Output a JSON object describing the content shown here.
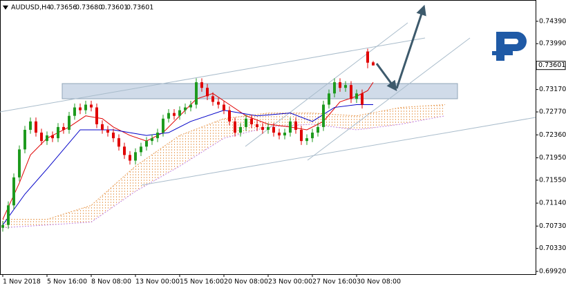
{
  "chart_data": {
    "type": "candlestick",
    "symbol": "AUDUSD,H4",
    "header_prices": [
      {
        "value": 0.73656,
        "label": "0.73656"
      },
      {
        "value": 0.7368,
        "label": "0.73680"
      },
      {
        "value": 0.73601,
        "label": "0.73601"
      },
      {
        "value": 0.73601,
        "label": "0.73601"
      }
    ],
    "last_price": {
      "value": 0.73601,
      "label": "0.73601"
    },
    "open": [
      0.707,
      0.7075,
      0.711,
      0.716,
      0.721,
      0.7245,
      0.726,
      0.724,
      0.7225,
      0.7235,
      0.723,
      0.725,
      0.7245,
      0.727,
      0.7285,
      0.728,
      0.729,
      0.7285,
      0.7255,
      0.7245,
      0.724,
      0.723,
      0.7215,
      0.72,
      0.719,
      0.7205,
      0.7215,
      0.7225,
      0.723,
      0.724,
      0.7265,
      0.7275,
      0.727,
      0.728,
      0.7285,
      0.729,
      0.733,
      0.732,
      0.7305,
      0.7295,
      0.729,
      0.728,
      0.726,
      0.724,
      0.725,
      0.7265,
      0.7255,
      0.725,
      0.7245,
      0.725,
      0.724,
      0.7235,
      0.724,
      0.726,
      0.7245,
      0.7225,
      0.723,
      0.724,
      0.725,
      0.729,
      0.731,
      0.733,
      0.732,
      0.7325,
      0.73,
      0.731,
      0.7385,
      0.73656
    ],
    "high": [
      0.7082,
      0.7117,
      0.7167,
      0.7217,
      0.7252,
      0.7267,
      0.7267,
      0.7247,
      0.7242,
      0.7242,
      0.7257,
      0.7257,
      0.7277,
      0.7292,
      0.7292,
      0.7297,
      0.7297,
      0.7292,
      0.7262,
      0.7252,
      0.7247,
      0.7237,
      0.7222,
      0.7207,
      0.7212,
      0.7222,
      0.7232,
      0.7237,
      0.7247,
      0.7272,
      0.7282,
      0.7282,
      0.7287,
      0.7292,
      0.7297,
      0.7337,
      0.7337,
      0.7327,
      0.7312,
      0.7302,
      0.7297,
      0.7287,
      0.7267,
      0.7257,
      0.7272,
      0.7272,
      0.7262,
      0.7257,
      0.7257,
      0.7257,
      0.7247,
      0.7247,
      0.7267,
      0.7267,
      0.7252,
      0.7237,
      0.7247,
      0.7257,
      0.7297,
      0.7317,
      0.7337,
      0.7337,
      0.7332,
      0.7332,
      0.7317,
      0.7317,
      0.739,
      0.7368
    ],
    "low": [
      0.7063,
      0.7068,
      0.7103,
      0.7153,
      0.7203,
      0.7238,
      0.7233,
      0.7218,
      0.7218,
      0.7223,
      0.7223,
      0.7238,
      0.7238,
      0.7263,
      0.7273,
      0.7273,
      0.7278,
      0.7248,
      0.7238,
      0.7233,
      0.7223,
      0.7208,
      0.7193,
      0.7183,
      0.7183,
      0.7198,
      0.7208,
      0.7218,
      0.7223,
      0.7233,
      0.7258,
      0.7263,
      0.7263,
      0.7273,
      0.7278,
      0.7283,
      0.7313,
      0.7298,
      0.7288,
      0.7283,
      0.7273,
      0.7253,
      0.7233,
      0.7233,
      0.7243,
      0.7248,
      0.7243,
      0.7238,
      0.7238,
      0.7233,
      0.7228,
      0.7228,
      0.7233,
      0.7238,
      0.7218,
      0.7218,
      0.7223,
      0.7233,
      0.7243,
      0.7283,
      0.7303,
      0.7313,
      0.7313,
      0.7293,
      0.7293,
      0.7283,
      0.7355,
      0.73601
    ],
    "close": [
      0.7075,
      0.711,
      0.716,
      0.721,
      0.7245,
      0.726,
      0.724,
      0.7225,
      0.7235,
      0.723,
      0.725,
      0.7245,
      0.727,
      0.7285,
      0.728,
      0.729,
      0.7285,
      0.7255,
      0.7245,
      0.724,
      0.723,
      0.7215,
      0.72,
      0.719,
      0.7205,
      0.7215,
      0.7225,
      0.723,
      0.724,
      0.7265,
      0.7275,
      0.727,
      0.728,
      0.7285,
      0.729,
      0.733,
      0.732,
      0.7305,
      0.7295,
      0.729,
      0.728,
      0.726,
      0.724,
      0.725,
      0.7265,
      0.7255,
      0.725,
      0.7245,
      0.725,
      0.724,
      0.7235,
      0.724,
      0.726,
      0.7245,
      0.7225,
      0.723,
      0.724,
      0.725,
      0.729,
      0.731,
      0.733,
      0.732,
      0.7325,
      0.73,
      0.731,
      0.729,
      0.7365,
      0.73601
    ],
    "up_color": "#1e9a1e",
    "down_color": "#e00000",
    "lines": [
      {
        "color": "#e00000",
        "x": [
          0,
          3,
          5,
          8,
          12,
          15,
          18,
          20,
          23,
          26,
          29,
          32,
          35,
          38,
          41,
          44,
          48,
          52,
          55,
          58,
          61,
          64,
          66,
          67
        ],
        "values": [
          0.7085,
          0.715,
          0.72,
          0.723,
          0.725,
          0.727,
          0.7265,
          0.725,
          0.7235,
          0.7225,
          0.724,
          0.727,
          0.73,
          0.731,
          0.729,
          0.727,
          0.7255,
          0.725,
          0.7245,
          0.726,
          0.7295,
          0.7305,
          0.7315,
          0.733
        ]
      },
      {
        "color": "#0000c8",
        "x": [
          0,
          4,
          8,
          14,
          20,
          26,
          30,
          34,
          40,
          46,
          52,
          56,
          60,
          64,
          67
        ],
        "values": [
          0.7075,
          0.713,
          0.7175,
          0.7245,
          0.7245,
          0.7235,
          0.724,
          0.726,
          0.728,
          0.727,
          0.7275,
          0.726,
          0.7285,
          0.729,
          0.729
        ]
      }
    ],
    "cloud": {
      "color": "#e89a50",
      "x": [
        0,
        8,
        16,
        24,
        32,
        40,
        48,
        56,
        64,
        72,
        80
      ],
      "upper": [
        0.7085,
        0.7085,
        0.711,
        0.718,
        0.7235,
        0.7265,
        0.7275,
        0.7275,
        0.727,
        0.7285,
        0.729
      ],
      "lower": [
        0.707,
        0.7075,
        0.708,
        0.7135,
        0.718,
        0.723,
        0.725,
        0.7255,
        0.7245,
        0.7255,
        0.727
      ]
    },
    "ylim": [
      0.6987,
      0.7477
    ],
    "yticks": [
      {
        "value": 0.7439,
        "label": "0.74390"
      },
      {
        "value": 0.7399,
        "label": "0.73990"
      },
      {
        "value": 0.7317,
        "label": "0.73170"
      },
      {
        "value": 0.7277,
        "label": "0.72770"
      },
      {
        "value": 0.7236,
        "label": "0.72360"
      },
      {
        "value": 0.7195,
        "label": "0.71950"
      },
      {
        "value": 0.7155,
        "label": "0.71550"
      },
      {
        "value": 0.7114,
        "label": "0.71140"
      },
      {
        "value": 0.7073,
        "label": "0.70730"
      },
      {
        "value": 0.7033,
        "label": "0.70330"
      },
      {
        "value": 0.6992,
        "label": "0.69920"
      }
    ],
    "xticks": [
      {
        "value": 0,
        "label": "1 Nov 2018"
      },
      {
        "value": 8,
        "label": "5 Nov 16:00"
      },
      {
        "value": 16,
        "label": "8 Nov 08:00"
      },
      {
        "value": 24,
        "label": "13 Nov 00:00"
      },
      {
        "value": 32,
        "label": "15 Nov 16:00"
      },
      {
        "value": 40,
        "label": "20 Nov 08:00"
      },
      {
        "value": 48,
        "label": "23 Nov 00:00"
      },
      {
        "value": 56,
        "label": "27 Nov 16:00"
      },
      {
        "value": 64,
        "label": "30 Nov 08:00"
      }
    ]
  }
}
